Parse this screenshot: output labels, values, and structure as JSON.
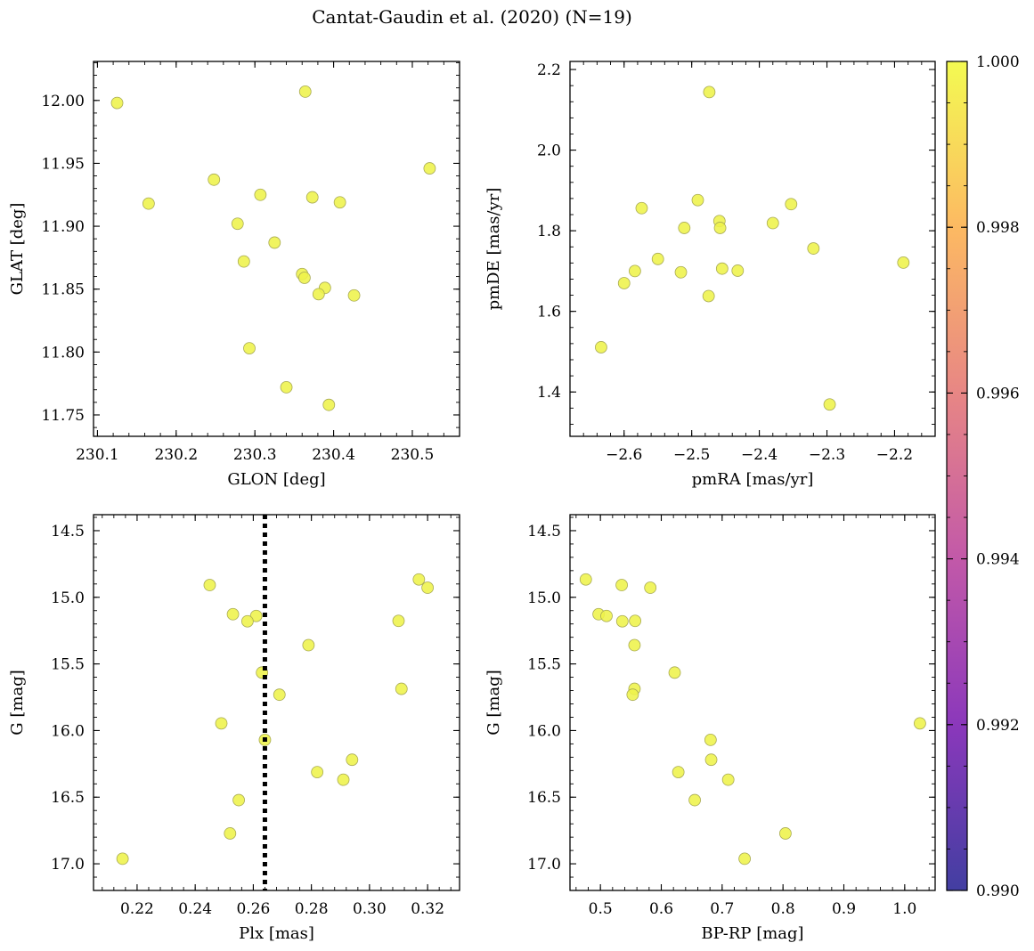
{
  "figure": {
    "title": "Cantat-Gaudin et al. (2020) (N=19)"
  },
  "colorbar": {
    "min": 0.99,
    "max": 1.0,
    "ticks": [
      "0.990",
      "0.992",
      "0.994",
      "0.996",
      "0.998",
      "1.000"
    ],
    "colormap": [
      "#0d0887",
      "#6a00a8",
      "#b12a90",
      "#e16462",
      "#fca636",
      "#f0f921"
    ]
  },
  "styles": {
    "point_fill": "#eef34a",
    "point_edge": "#a9ab55",
    "vline_color": "#000000"
  },
  "chart_data": [
    {
      "id": "glon-glat",
      "type": "scatter",
      "xlabel": "GLON [deg]",
      "ylabel": "GLAT [deg]",
      "xlim": [
        230.095,
        230.56
      ],
      "ylim": [
        11.733,
        12.031
      ],
      "xticks": [
        230.1,
        230.2,
        230.3,
        230.4,
        230.5
      ],
      "xtick_labels": [
        "230.1",
        "230.2",
        "230.3",
        "230.4",
        "230.5"
      ],
      "yticks": [
        11.75,
        11.8,
        11.85,
        11.9,
        11.95,
        12.0
      ],
      "ytick_labels": [
        "11.75",
        "11.80",
        "11.85",
        "11.90",
        "11.95",
        "12.00"
      ],
      "x": [
        230.125,
        230.364,
        230.522,
        230.248,
        230.165,
        230.307,
        230.373,
        230.408,
        230.278,
        230.325,
        230.286,
        230.36,
        230.363,
        230.389,
        230.381,
        230.426,
        230.293,
        230.34,
        230.394
      ],
      "y": [
        11.998,
        12.007,
        11.946,
        11.937,
        11.918,
        11.925,
        11.923,
        11.919,
        11.902,
        11.887,
        11.872,
        11.862,
        11.859,
        11.851,
        11.846,
        11.845,
        11.803,
        11.772,
        11.758
      ]
    },
    {
      "id": "pmra-pmde",
      "type": "scatter",
      "xlabel": "pmRA [mas/yr]",
      "ylabel": "pmDE [mas/yr]",
      "xlim": [
        -2.68,
        -2.14
      ],
      "ylim": [
        1.29,
        2.22
      ],
      "xticks": [
        -2.6,
        -2.5,
        -2.4,
        -2.3,
        -2.2
      ],
      "xtick_labels": [
        "−2.6",
        "−2.5",
        "−2.4",
        "−2.3",
        "−2.2"
      ],
      "yticks": [
        1.4,
        1.6,
        1.8,
        2.0,
        2.2
      ],
      "ytick_labels": [
        "1.4",
        "1.6",
        "1.8",
        "2.0",
        "2.2"
      ],
      "x": [
        -2.474,
        -2.491,
        -2.574,
        -2.459,
        -2.458,
        -2.511,
        -2.353,
        -2.38,
        -2.32,
        -2.187,
        -2.55,
        -2.584,
        -2.516,
        -2.455,
        -2.432,
        -2.6,
        -2.475,
        -2.634,
        -2.296
      ],
      "y": [
        2.144,
        1.876,
        1.856,
        1.824,
        1.807,
        1.807,
        1.866,
        1.819,
        1.756,
        1.721,
        1.73,
        1.7,
        1.697,
        1.706,
        1.701,
        1.67,
        1.638,
        1.511,
        1.369
      ]
    },
    {
      "id": "plx-g",
      "type": "scatter",
      "xlabel": "Plx [mas]",
      "ylabel": "G [mag]",
      "xlim": [
        0.205,
        0.331
      ],
      "ylim": [
        17.2,
        14.38
      ],
      "y_inverted": true,
      "vline": 0.264,
      "xticks": [
        0.22,
        0.24,
        0.26,
        0.28,
        0.3,
        0.32
      ],
      "xtick_labels": [
        "0.22",
        "0.24",
        "0.26",
        "0.28",
        "0.30",
        "0.32"
      ],
      "yticks": [
        14.5,
        15.0,
        15.5,
        16.0,
        16.5,
        17.0
      ],
      "ytick_labels": [
        "14.5",
        "15.0",
        "15.5",
        "16.0",
        "16.5",
        "17.0"
      ],
      "x": [
        0.317,
        0.245,
        0.32,
        0.253,
        0.261,
        0.31,
        0.258,
        0.279,
        0.263,
        0.311,
        0.269,
        0.249,
        0.264,
        0.294,
        0.282,
        0.291,
        0.255,
        0.252,
        0.215
      ],
      "y": [
        14.866,
        14.908,
        14.928,
        15.127,
        15.14,
        15.177,
        15.18,
        15.359,
        15.565,
        15.687,
        15.731,
        15.946,
        16.07,
        16.219,
        16.312,
        16.369,
        16.522,
        16.772,
        16.962
      ]
    },
    {
      "id": "bprp-g",
      "type": "scatter",
      "xlabel": "BP-RP [mag]",
      "ylabel": "G [mag]",
      "xlim": [
        0.45,
        1.05
      ],
      "ylim": [
        17.2,
        14.38
      ],
      "y_inverted": true,
      "xticks": [
        0.5,
        0.6,
        0.7,
        0.8,
        0.9,
        1.0
      ],
      "xtick_labels": [
        "0.5",
        "0.6",
        "0.7",
        "0.8",
        "0.9",
        "1.0"
      ],
      "yticks": [
        14.5,
        15.0,
        15.5,
        16.0,
        16.5,
        17.0
      ],
      "ytick_labels": [
        "14.5",
        "15.0",
        "15.5",
        "16.0",
        "16.5",
        "17.0"
      ],
      "x": [
        0.476,
        0.535,
        0.582,
        0.497,
        0.51,
        0.557,
        0.536,
        0.556,
        0.622,
        0.556,
        0.553,
        1.025,
        0.681,
        0.682,
        0.628,
        0.71,
        0.655,
        0.804,
        0.737
      ],
      "y": [
        14.866,
        14.908,
        14.928,
        15.127,
        15.14,
        15.177,
        15.18,
        15.359,
        15.565,
        15.687,
        15.731,
        15.946,
        16.07,
        16.219,
        16.312,
        16.369,
        16.522,
        16.772,
        16.962
      ]
    }
  ]
}
